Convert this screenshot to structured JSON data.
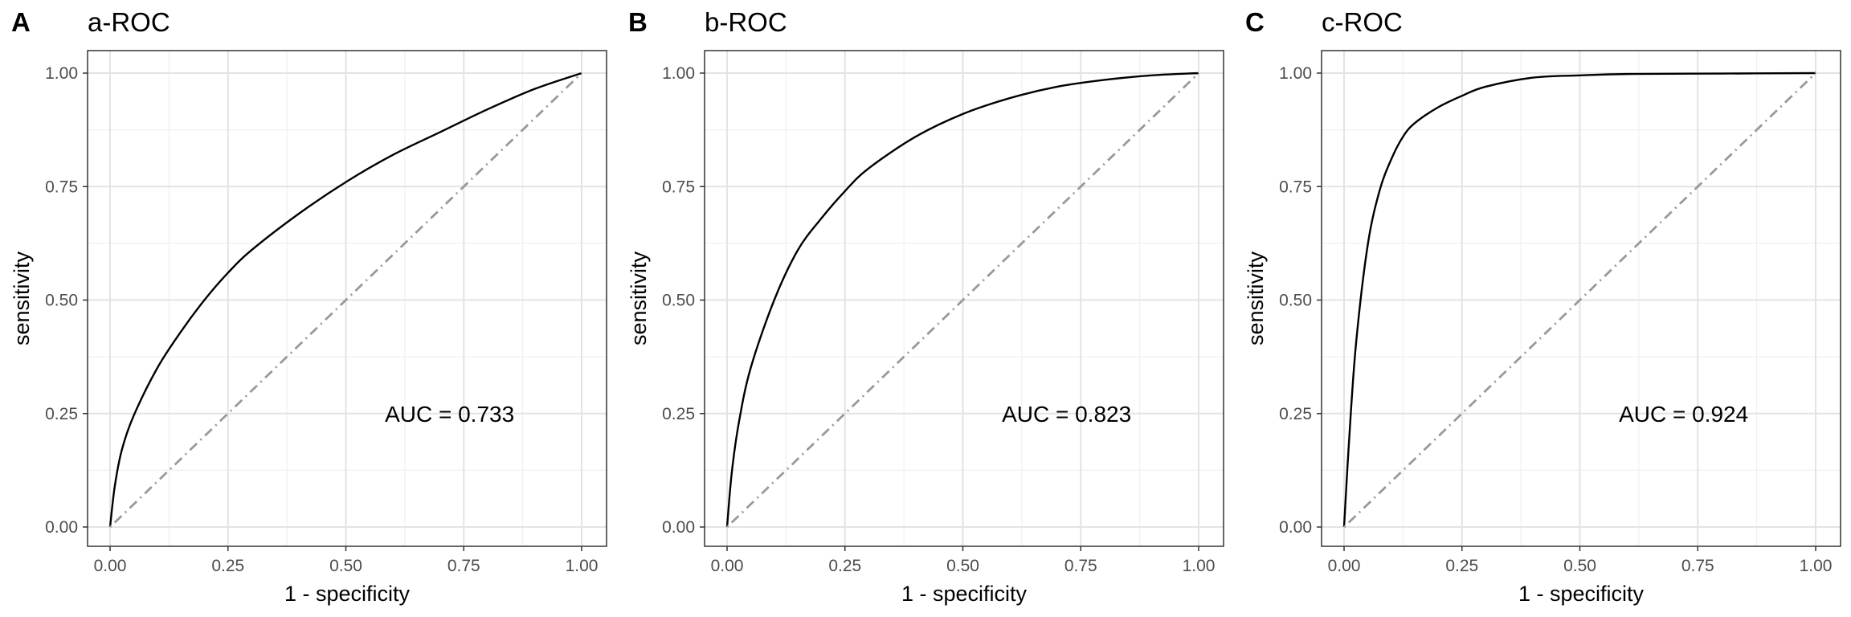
{
  "chart_data": [
    {
      "type": "line",
      "panel_label": "A",
      "title": "a-ROC",
      "xlabel": "1 - specificity",
      "ylabel": "sensitivity",
      "xlim": [
        0,
        1
      ],
      "ylim": [
        0,
        1
      ],
      "x_ticks": [
        "0.00",
        "0.25",
        "0.50",
        "0.75",
        "1.00"
      ],
      "y_ticks": [
        "0.00",
        "0.25",
        "0.50",
        "0.75",
        "1.00"
      ],
      "grid": true,
      "annotation": "AUC =  0.733",
      "auc": 0.733,
      "series": [
        {
          "style": "solid",
          "color": "#000000",
          "x": [
            0,
            0.01,
            0.025,
            0.05,
            0.1,
            0.15,
            0.2,
            0.25,
            0.3,
            0.4,
            0.5,
            0.6,
            0.7,
            0.8,
            0.9,
            1.0
          ],
          "y": [
            0,
            0.09,
            0.17,
            0.245,
            0.35,
            0.43,
            0.5,
            0.56,
            0.61,
            0.69,
            0.76,
            0.82,
            0.87,
            0.92,
            0.965,
            1.0
          ]
        },
        {
          "style": "dotdash",
          "color": "#999999",
          "x": [
            0,
            1
          ],
          "y": [
            0,
            1
          ]
        }
      ]
    },
    {
      "type": "line",
      "panel_label": "B",
      "title": "b-ROC",
      "xlabel": "1 - specificity",
      "ylabel": "sensitivity",
      "xlim": [
        0,
        1
      ],
      "ylim": [
        0,
        1
      ],
      "x_ticks": [
        "0.00",
        "0.25",
        "0.50",
        "0.75",
        "1.00"
      ],
      "y_ticks": [
        "0.00",
        "0.25",
        "0.50",
        "0.75",
        "1.00"
      ],
      "grid": true,
      "annotation": "AUC =  0.823",
      "auc": 0.823,
      "series": [
        {
          "style": "solid",
          "color": "#000000",
          "x": [
            0,
            0.01,
            0.025,
            0.05,
            0.1,
            0.15,
            0.2,
            0.25,
            0.3,
            0.4,
            0.5,
            0.6,
            0.7,
            0.8,
            0.9,
            1.0
          ],
          "y": [
            0,
            0.12,
            0.23,
            0.35,
            0.5,
            0.61,
            0.68,
            0.74,
            0.79,
            0.86,
            0.91,
            0.945,
            0.97,
            0.985,
            0.995,
            1.0
          ]
        },
        {
          "style": "dotdash",
          "color": "#999999",
          "x": [
            0,
            1
          ],
          "y": [
            0,
            1
          ]
        }
      ]
    },
    {
      "type": "line",
      "panel_label": "C",
      "title": "c-ROC",
      "xlabel": "1 - specificity",
      "ylabel": "sensitivity",
      "xlim": [
        0,
        1
      ],
      "ylim": [
        0,
        1
      ],
      "x_ticks": [
        "0.00",
        "0.25",
        "0.50",
        "0.75",
        "1.00"
      ],
      "y_ticks": [
        "0.00",
        "0.25",
        "0.50",
        "0.75",
        "1.00"
      ],
      "grid": true,
      "annotation": "AUC =  0.924",
      "auc": 0.924,
      "series": [
        {
          "style": "solid",
          "color": "#000000",
          "x": [
            0,
            0.01,
            0.025,
            0.05,
            0.075,
            0.1,
            0.125,
            0.15,
            0.2,
            0.25,
            0.3,
            0.4,
            0.5,
            0.6,
            0.8,
            1.0
          ],
          "y": [
            0,
            0.18,
            0.4,
            0.62,
            0.74,
            0.81,
            0.86,
            0.89,
            0.925,
            0.95,
            0.97,
            0.99,
            0.995,
            0.998,
            0.999,
            1.0
          ]
        },
        {
          "style": "dotdash",
          "color": "#999999",
          "x": [
            0,
            1
          ],
          "y": [
            0,
            1
          ]
        }
      ]
    }
  ]
}
